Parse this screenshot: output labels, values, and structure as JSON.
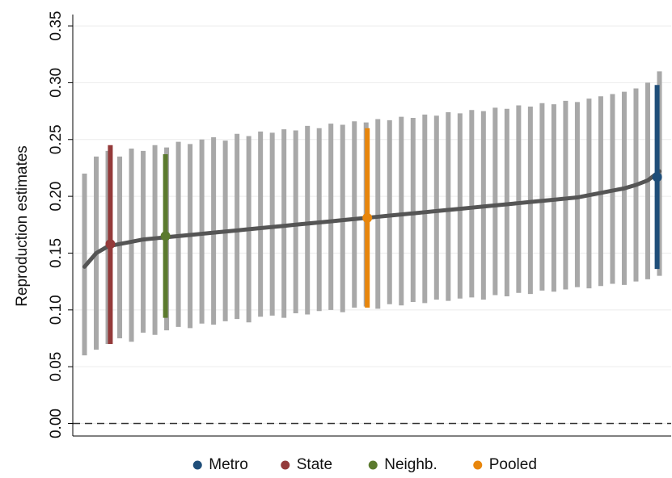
{
  "chart_data": {
    "type": "interval",
    "y_label": "Reproduction estimates",
    "ylim": [
      -0.011,
      0.36
    ],
    "xlim": [
      0,
      51
    ],
    "yticks": [
      {
        "value": 0,
        "label": "0.00"
      },
      {
        "value": 0.05,
        "label": "0.05"
      },
      {
        "value": 0.1,
        "label": "0.10"
      },
      {
        "value": 0.15,
        "label": "0.15"
      },
      {
        "value": 0.2,
        "label": "0.20"
      },
      {
        "value": 0.25,
        "label": "0.25"
      },
      {
        "value": 0.3,
        "label": "0.30"
      },
      {
        "value": 0.35,
        "label": "0.35"
      }
    ],
    "grid": true,
    "hline": 0,
    "legend": "bottom",
    "intervals": {
      "color": "#a8a8a8",
      "point_color": "#555555",
      "x": [
        1,
        2,
        3,
        4,
        5,
        6,
        7,
        8,
        9,
        10,
        11,
        12,
        13,
        14,
        15,
        16,
        17,
        18,
        19,
        20,
        21,
        22,
        23,
        24,
        25,
        26,
        27,
        28,
        29,
        30,
        31,
        32,
        33,
        34,
        35,
        36,
        37,
        38,
        39,
        40,
        41,
        42,
        43,
        44,
        45,
        46,
        47,
        48,
        49,
        50
      ],
      "values": [
        0.138,
        0.15,
        0.156,
        0.158,
        0.16,
        0.162,
        0.163,
        0.164,
        0.165,
        0.166,
        0.167,
        0.168,
        0.169,
        0.17,
        0.171,
        0.172,
        0.173,
        0.174,
        0.175,
        0.176,
        0.177,
        0.178,
        0.179,
        0.18,
        0.181,
        0.182,
        0.183,
        0.184,
        0.185,
        0.186,
        0.187,
        0.188,
        0.189,
        0.19,
        0.191,
        0.192,
        0.193,
        0.194,
        0.195,
        0.196,
        0.197,
        0.198,
        0.199,
        0.201,
        0.203,
        0.205,
        0.207,
        0.21,
        0.214,
        0.222
      ],
      "low": [
        0.06,
        0.065,
        0.07,
        0.075,
        0.072,
        0.08,
        0.078,
        0.082,
        0.085,
        0.084,
        0.088,
        0.087,
        0.09,
        0.092,
        0.089,
        0.094,
        0.095,
        0.093,
        0.097,
        0.096,
        0.099,
        0.1,
        0.098,
        0.102,
        0.103,
        0.101,
        0.105,
        0.104,
        0.107,
        0.106,
        0.109,
        0.108,
        0.11,
        0.111,
        0.109,
        0.113,
        0.112,
        0.115,
        0.114,
        0.117,
        0.116,
        0.118,
        0.12,
        0.119,
        0.121,
        0.123,
        0.122,
        0.125,
        0.127,
        0.13
      ],
      "high": [
        0.22,
        0.235,
        0.24,
        0.235,
        0.242,
        0.24,
        0.245,
        0.243,
        0.248,
        0.246,
        0.25,
        0.252,
        0.249,
        0.255,
        0.253,
        0.257,
        0.256,
        0.259,
        0.258,
        0.262,
        0.26,
        0.264,
        0.263,
        0.266,
        0.265,
        0.268,
        0.267,
        0.27,
        0.269,
        0.272,
        0.271,
        0.274,
        0.273,
        0.276,
        0.275,
        0.278,
        0.277,
        0.28,
        0.279,
        0.282,
        0.281,
        0.284,
        0.283,
        0.286,
        0.288,
        0.29,
        0.292,
        0.295,
        0.3,
        0.31
      ]
    },
    "series": [
      {
        "name": "Metro",
        "color": "#1f4e79",
        "x": 49.8,
        "value": 0.217,
        "low": 0.136,
        "high": 0.298
      },
      {
        "name": "State",
        "color": "#943a3a",
        "x": 3.2,
        "value": 0.158,
        "low": 0.07,
        "high": 0.245
      },
      {
        "name": "Neighb.",
        "color": "#5b7a2e",
        "x": 7.9,
        "value": 0.165,
        "low": 0.093,
        "high": 0.237
      },
      {
        "name": "Pooled",
        "color": "#e8860c",
        "x": 25.1,
        "value": 0.181,
        "low": 0.102,
        "high": 0.26
      }
    ]
  }
}
